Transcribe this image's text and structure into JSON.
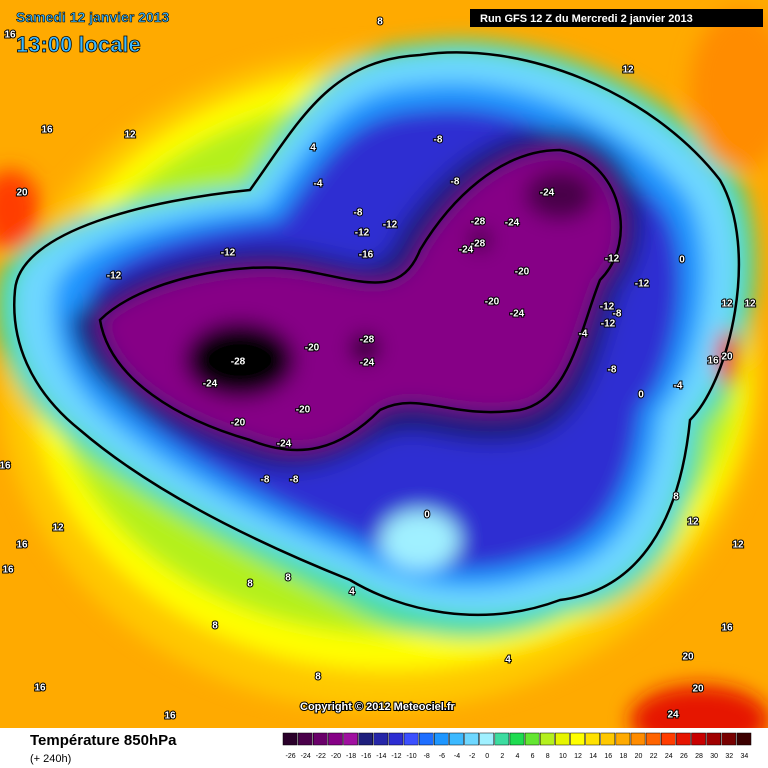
{
  "header": {
    "date": "Samedi 12 janvier 2013",
    "time": "13:00 locale",
    "run": "Run GFS 12 Z du Mercredi 2 janvier 2013"
  },
  "map": {
    "contour_labels": [
      16,
      8,
      12,
      16,
      12,
      4,
      -8,
      20,
      -4,
      -8,
      -24,
      -8,
      -12,
      -12,
      -28,
      -24,
      -28,
      -24,
      -12,
      -16,
      -12,
      0,
      -12,
      -20,
      -12,
      12,
      12,
      -20,
      -12,
      -8,
      -24,
      -12,
      -28,
      -4,
      -20,
      20,
      16,
      -28,
      -24,
      -8,
      -24,
      -4,
      0,
      -20,
      -20,
      -24,
      16,
      -8,
      -8,
      8,
      0,
      12,
      12,
      16,
      12,
      16,
      8,
      8,
      4,
      8,
      16,
      4,
      20,
      16,
      8,
      20,
      24,
      16
    ]
  },
  "copyright": "Copyright © 2012 Meteociel.fr",
  "footer": {
    "title": "Température 850hPa",
    "lead": "(+ 240h)"
  },
  "scale": {
    "values": [
      -26,
      -24,
      -22,
      -20,
      -18,
      -16,
      -14,
      -12,
      -10,
      -8,
      -6,
      -4,
      -2,
      0,
      2,
      4,
      6,
      8,
      10,
      12,
      14,
      16,
      18,
      20,
      22,
      24,
      26,
      28,
      30,
      32,
      34
    ],
    "colors": [
      "#2a002a",
      "#4a004a",
      "#6a006a",
      "#860086",
      "#a010a0",
      "#1e1e7c",
      "#2626a8",
      "#2d2dd2",
      "#3c50ff",
      "#1e6eff",
      "#1e96ff",
      "#3cb9ff",
      "#6ed7ff",
      "#a0f0ff",
      "#3cdca0",
      "#1edc50",
      "#64e632",
      "#b4f01e",
      "#e6f500",
      "#ffff00",
      "#ffe100",
      "#ffc800",
      "#ffaa00",
      "#ff8c00",
      "#ff6400",
      "#ff3c00",
      "#e61400",
      "#c80000",
      "#a00000",
      "#780000",
      "#3c0000"
    ]
  }
}
